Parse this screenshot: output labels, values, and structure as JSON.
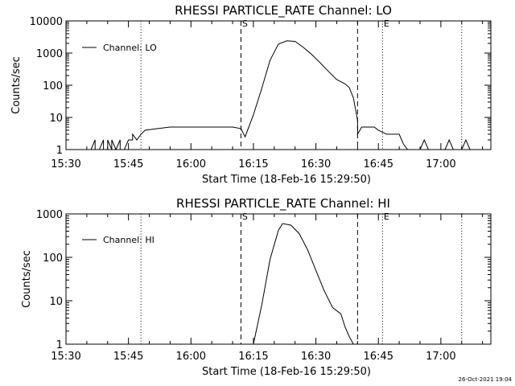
{
  "chart_data": [
    {
      "type": "line",
      "title": "RHESSI PARTICLE_RATE Channel: LO",
      "xlabel": "Start Time (18-Feb-16 15:29:50)",
      "ylabel": "Counts/sec",
      "yscale": "log",
      "ylim": [
        1,
        10000
      ],
      "xlim": [
        "15:30",
        "17:12"
      ],
      "xticks": [
        "15:30",
        "15:45",
        "16:00",
        "16:15",
        "16:30",
        "16:45",
        "17:00"
      ],
      "yticks": [
        "1",
        "10",
        "100",
        "1000",
        "10000"
      ],
      "legend": {
        "position": "top-left",
        "entries": [
          "Channel: LO"
        ]
      },
      "markers": [
        {
          "label": "",
          "time": "15:48",
          "style": "dotted"
        },
        {
          "label": "S",
          "time": "16:12",
          "style": "dashed"
        },
        {
          "label": "",
          "time": "16:40",
          "style": "dashed"
        },
        {
          "label": "E",
          "time": "16:46",
          "style": "dotted"
        },
        {
          "label": "",
          "time": "17:05",
          "style": "dotted"
        }
      ],
      "series": [
        {
          "points": [
            [
              "15:31",
              1
            ],
            [
              "15:36",
              1
            ],
            [
              "15:37",
              2
            ],
            [
              "15:37",
              1
            ],
            [
              "15:38",
              1
            ],
            [
              "15:39",
              2
            ],
            [
              "15:39",
              1
            ],
            [
              "15:40",
              1
            ],
            [
              "15:40",
              2
            ],
            [
              "15:41",
              1
            ],
            [
              "15:41",
              2
            ],
            [
              "15:42",
              1
            ],
            [
              "15:43",
              2
            ],
            [
              "15:43",
              1
            ],
            [
              "15:44",
              1
            ],
            [
              "15:45",
              2
            ],
            [
              "15:46",
              2
            ],
            [
              "15:46",
              3
            ],
            [
              "15:47",
              2
            ],
            [
              "15:48",
              3
            ],
            [
              "15:49",
              4
            ],
            [
              "15:52",
              4.5
            ],
            [
              "15:55",
              5
            ],
            [
              "15:58",
              5
            ],
            [
              "16:01",
              5
            ],
            [
              "16:04",
              5
            ],
            [
              "16:07",
              5
            ],
            [
              "16:10",
              5
            ],
            [
              "16:12",
              4.5
            ],
            [
              "16:13",
              2.5
            ],
            [
              "16:15",
              12
            ],
            [
              "16:17",
              80
            ],
            [
              "16:19",
              600
            ],
            [
              "16:21",
              1900
            ],
            [
              "16:23",
              2400
            ],
            [
              "16:25",
              2300
            ],
            [
              "16:27",
              1500
            ],
            [
              "16:29",
              900
            ],
            [
              "16:31",
              500
            ],
            [
              "16:33",
              270
            ],
            [
              "16:35",
              150
            ],
            [
              "16:37",
              110
            ],
            [
              "16:38",
              85
            ],
            [
              "16:39",
              40
            ],
            [
              "16:40",
              8
            ],
            [
              "16:40",
              3
            ],
            [
              "16:41",
              5
            ],
            [
              "16:44",
              5
            ],
            [
              "16:45",
              4
            ],
            [
              "16:47",
              3
            ],
            [
              "16:50",
              3
            ],
            [
              "16:51",
              1.5
            ],
            [
              "16:52",
              1
            ],
            [
              "16:55",
              1
            ],
            [
              "16:56",
              2
            ],
            [
              "16:57",
              1
            ],
            [
              "17:01",
              1
            ],
            [
              "17:02",
              2
            ],
            [
              "17:03",
              1
            ],
            [
              "17:05",
              1
            ],
            [
              "17:06",
              2
            ],
            [
              "17:07",
              1
            ],
            [
              "17:12",
              1
            ]
          ]
        }
      ]
    },
    {
      "type": "line",
      "title": "RHESSI PARTICLE_RATE Channel: HI",
      "xlabel": "Start Time (18-Feb-16 15:29:50)",
      "ylabel": "Counts/sec",
      "yscale": "log",
      "ylim": [
        1,
        1000
      ],
      "xlim": [
        "15:30",
        "17:12"
      ],
      "xticks": [
        "15:30",
        "15:45",
        "16:00",
        "16:15",
        "16:30",
        "16:45",
        "17:00"
      ],
      "yticks": [
        "1",
        "10",
        "100",
        "1000"
      ],
      "legend": {
        "position": "top-left",
        "entries": [
          "Channel: HI"
        ]
      },
      "markers": [
        {
          "label": "",
          "time": "15:48",
          "style": "dotted"
        },
        {
          "label": "S",
          "time": "16:12",
          "style": "dashed"
        },
        {
          "label": "",
          "time": "16:40",
          "style": "dashed"
        },
        {
          "label": "E",
          "time": "16:46",
          "style": "dotted"
        },
        {
          "label": "",
          "time": "17:05",
          "style": "dotted"
        }
      ],
      "series": [
        {
          "points": [
            [
              "16:15",
              1
            ],
            [
              "16:17",
              8
            ],
            [
              "16:19",
              90
            ],
            [
              "16:21",
              420
            ],
            [
              "16:22",
              600
            ],
            [
              "16:24",
              550
            ],
            [
              "16:26",
              350
            ],
            [
              "16:28",
              150
            ],
            [
              "16:30",
              50
            ],
            [
              "16:32",
              17
            ],
            [
              "16:34",
              7
            ],
            [
              "16:36",
              5
            ],
            [
              "16:37",
              2.5
            ],
            [
              "16:38",
              1.5
            ],
            [
              "16:39",
              1
            ]
          ]
        }
      ]
    }
  ],
  "footer": {
    "date_stamp": "26-Oct-2021 19:04"
  }
}
